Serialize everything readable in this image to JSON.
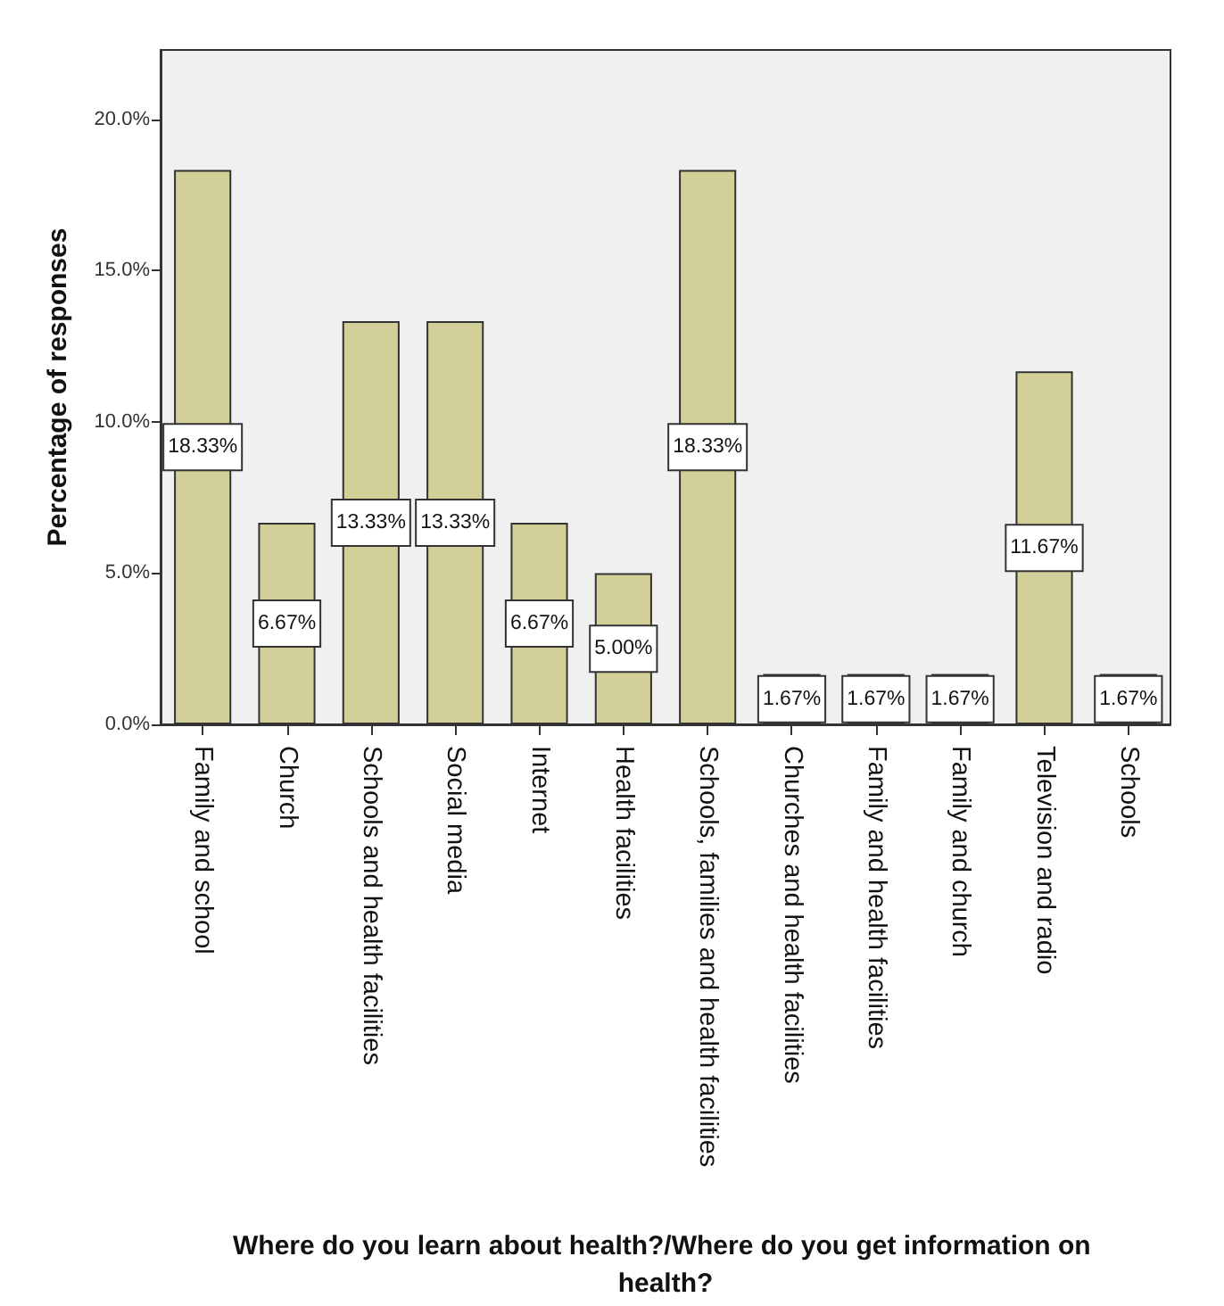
{
  "chart_data": {
    "type": "bar",
    "xlabel": "Where do you learn about health?/Where do you get information on health?",
    "ylabel": "Percentage of responses",
    "categories": [
      "Family and school",
      "Church",
      "Schools and health facilities",
      "Social media",
      "Internet",
      "Health facilities",
      "Schools, families and health facilities",
      "Churches and health facilities",
      "Family and health facilities",
      "Family and church",
      "Television and radio",
      "Schools"
    ],
    "values": [
      18.33,
      6.67,
      13.33,
      13.33,
      6.67,
      5.0,
      18.33,
      1.67,
      1.67,
      1.67,
      11.67,
      1.67
    ],
    "value_labels": [
      "18.33%",
      "6.67%",
      "13.33%",
      "13.33%",
      "6.67%",
      "5.00%",
      "18.33%",
      "1.67%",
      "1.67%",
      "1.67%",
      "11.67%",
      "1.67%"
    ],
    "color": "#d3cf98",
    "ylim": [
      0,
      22.3
    ],
    "yticks": [
      {
        "value": 0,
        "label": "0.0%"
      },
      {
        "value": 5,
        "label": "5.0%"
      },
      {
        "value": 10,
        "label": "10.0%"
      },
      {
        "value": 15,
        "label": "15.0%"
      },
      {
        "value": 20,
        "label": "20.0%"
      }
    ],
    "grid": false
  }
}
